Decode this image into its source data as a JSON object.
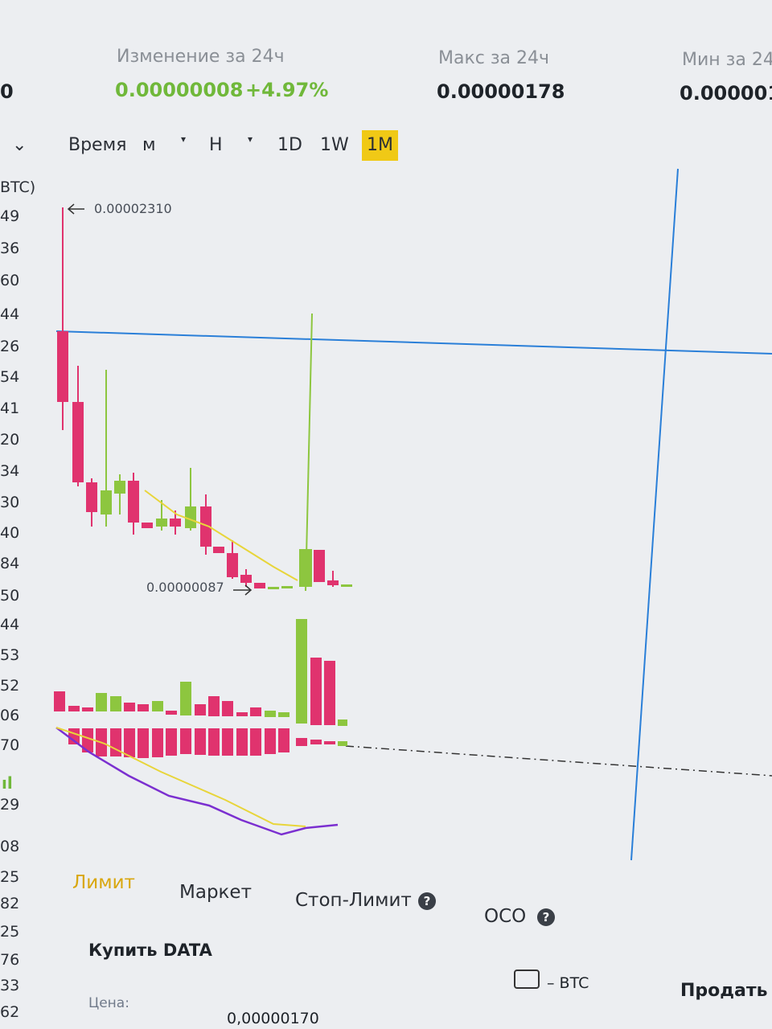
{
  "header": {
    "left_value": "0",
    "stats": [
      {
        "label": "Изменение за 24ч",
        "value": "0.00000008",
        "change": "+4.97%"
      },
      {
        "label": "Макс за 24ч",
        "value": "0.00000178"
      },
      {
        "label": "Мин за 24",
        "value": "0.000001"
      }
    ]
  },
  "toolbar": {
    "items": [
      "Время",
      "м",
      "Н",
      "1D",
      "1W",
      "1M"
    ],
    "active": "1M"
  },
  "chart": {
    "unit": "BTC)",
    "high_label": "0.00002310",
    "low_label": "0.00000087",
    "axis_labels": [
      "49",
      "36",
      "60",
      "44",
      "26",
      "54",
      "41",
      "20",
      "34",
      "30",
      "40",
      "84",
      "50",
      "44",
      "53",
      "52",
      "06",
      "70",
      "29",
      "08",
      "25",
      "82",
      "25",
      "76",
      "33",
      "62"
    ]
  },
  "order_tabs": {
    "items": [
      "Лимит",
      "Маркет",
      "Стоп-Лимит",
      "OCO"
    ],
    "active": "Лимит"
  },
  "form": {
    "buy_title": "Купить DATA",
    "wallet_unit": "– BTC",
    "sell_title": "Продать",
    "price_label": "Цена:",
    "price_value": "0,00000170"
  }
}
